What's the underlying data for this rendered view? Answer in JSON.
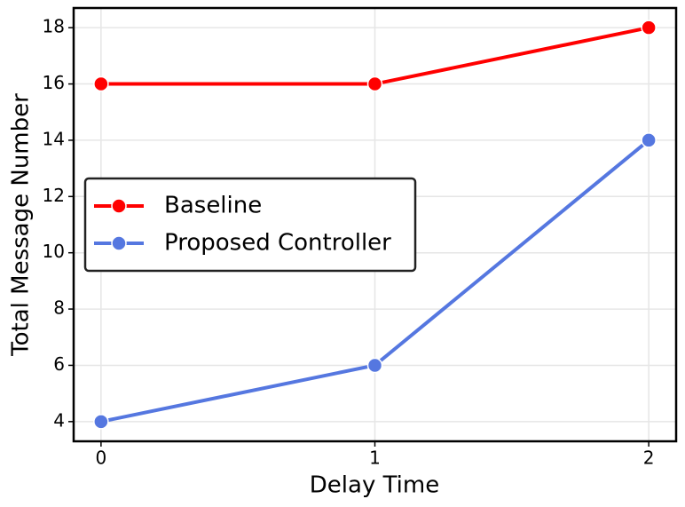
{
  "chart_data": {
    "type": "line",
    "x_label": "Delay Time",
    "y_label": "Total Message Number",
    "x": [
      0,
      1,
      2
    ],
    "series": [
      {
        "name": "Baseline",
        "color": "#ff0000",
        "values": [
          16,
          16,
          18
        ]
      },
      {
        "name": "Proposed Controller",
        "color": "#5577e0",
        "values": [
          4,
          6,
          14
        ]
      }
    ],
    "xlim": [
      -0.1,
      2.1
    ],
    "xticks": [
      0,
      1,
      2
    ],
    "ylim": [
      3.3,
      18.7
    ],
    "yticks": [
      4,
      6,
      8,
      10,
      12,
      14,
      16,
      18
    ],
    "grid": true,
    "legend": "center left"
  }
}
